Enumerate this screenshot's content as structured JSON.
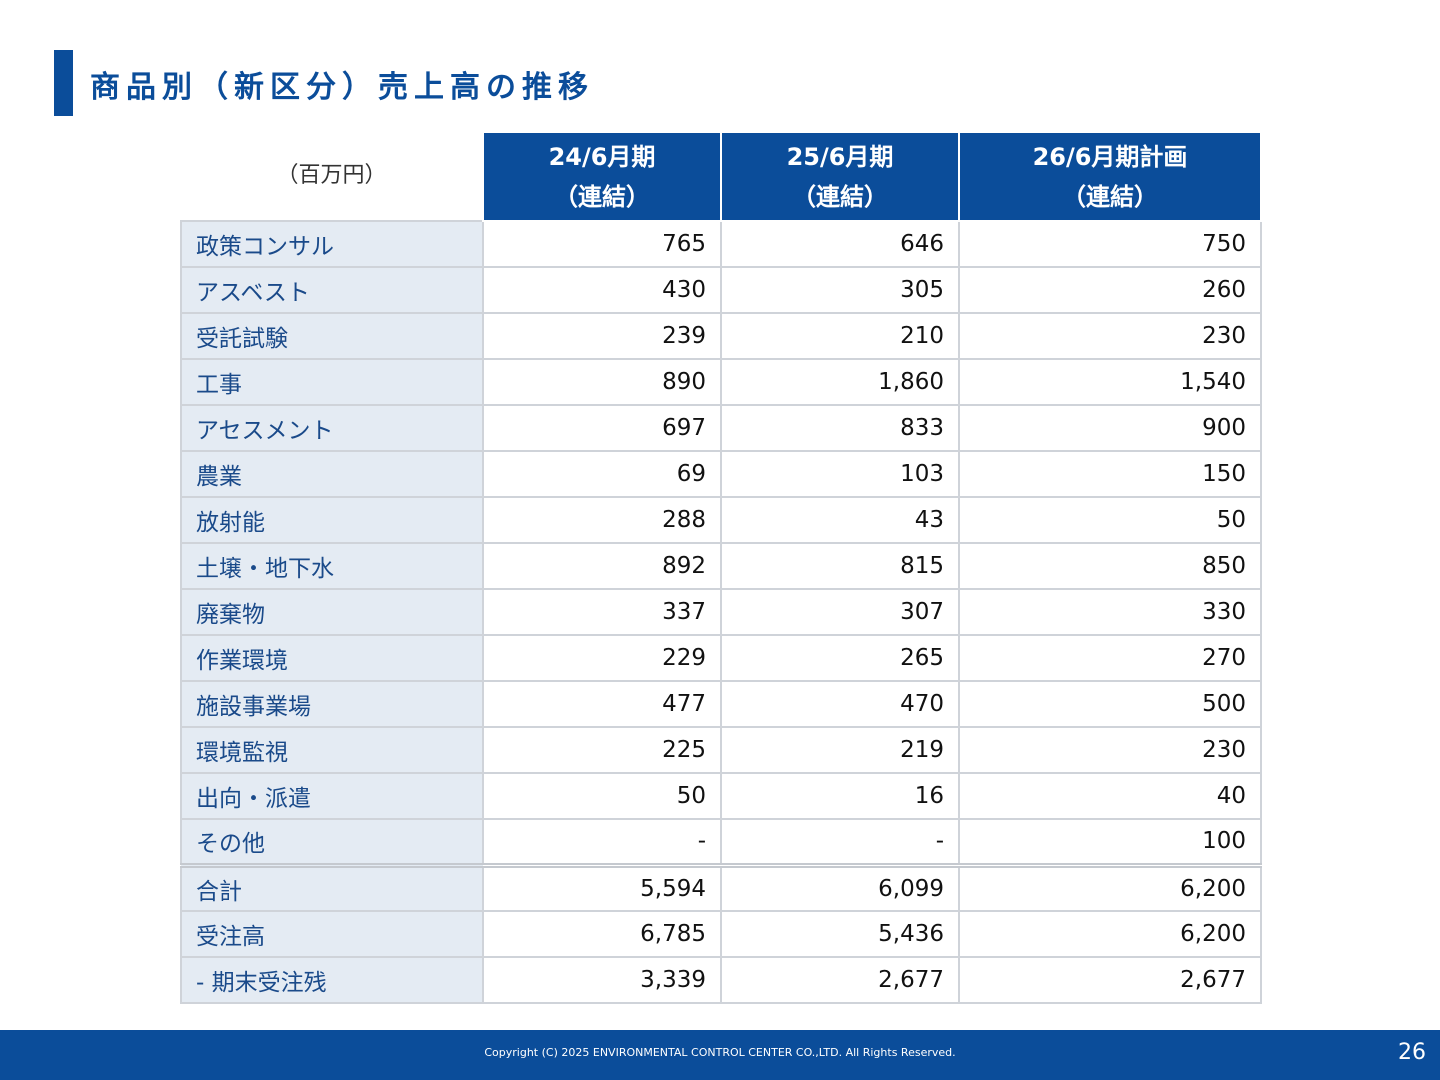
{
  "title": "商品別（新区分）売上高の推移",
  "unit_label": "（百万円）",
  "columns": [
    {
      "period": "24/6月期",
      "basis": "（連結）"
    },
    {
      "period": "25/6月期",
      "basis": "（連結）"
    },
    {
      "period": "26/6月期計画",
      "basis": "（連結）"
    }
  ],
  "rows": [
    {
      "label": "政策コンサル",
      "values": [
        "765",
        "646",
        "750"
      ]
    },
    {
      "label": "アスベスト",
      "values": [
        "430",
        "305",
        "260"
      ]
    },
    {
      "label": "受託試験",
      "values": [
        "239",
        "210",
        "230"
      ]
    },
    {
      "label": "工事",
      "values": [
        "890",
        "1,860",
        "1,540"
      ]
    },
    {
      "label": "アセスメント",
      "values": [
        "697",
        "833",
        "900"
      ]
    },
    {
      "label": "農業",
      "values": [
        "69",
        "103",
        "150"
      ]
    },
    {
      "label": "放射能",
      "values": [
        "288",
        "43",
        "50"
      ]
    },
    {
      "label": "土壌・地下水",
      "values": [
        "892",
        "815",
        "850"
      ]
    },
    {
      "label": "廃棄物",
      "values": [
        "337",
        "307",
        "330"
      ]
    },
    {
      "label": "作業環境",
      "values": [
        "229",
        "265",
        "270"
      ]
    },
    {
      "label": "施設事業場",
      "values": [
        "477",
        "470",
        "500"
      ]
    },
    {
      "label": "環境監視",
      "values": [
        "225",
        "219",
        "230"
      ]
    },
    {
      "label": "出向・派遣",
      "values": [
        "50",
        "16",
        "40"
      ]
    },
    {
      "label": "その他",
      "values": [
        "-",
        "-",
        "100"
      ]
    }
  ],
  "summary_rows": [
    {
      "label": "合計",
      "values": [
        "5,594",
        "6,099",
        "6,200"
      ]
    },
    {
      "label": "受注高",
      "values": [
        "6,785",
        "5,436",
        "6,200"
      ]
    },
    {
      "label": "- 期末受注残",
      "values": [
        "3,339",
        "2,677",
        "2,677"
      ]
    }
  ],
  "footer": {
    "copyright": "Copyright (C) 2025 ENVIRONMENTAL CONTROL CENTER CO.,LTD. All Rights Reserved.",
    "page_number": "26"
  },
  "colors": {
    "brand_blue": "#0b4d9a",
    "label_bg": "#e4ebf3",
    "grid": "#cfd3d9"
  }
}
